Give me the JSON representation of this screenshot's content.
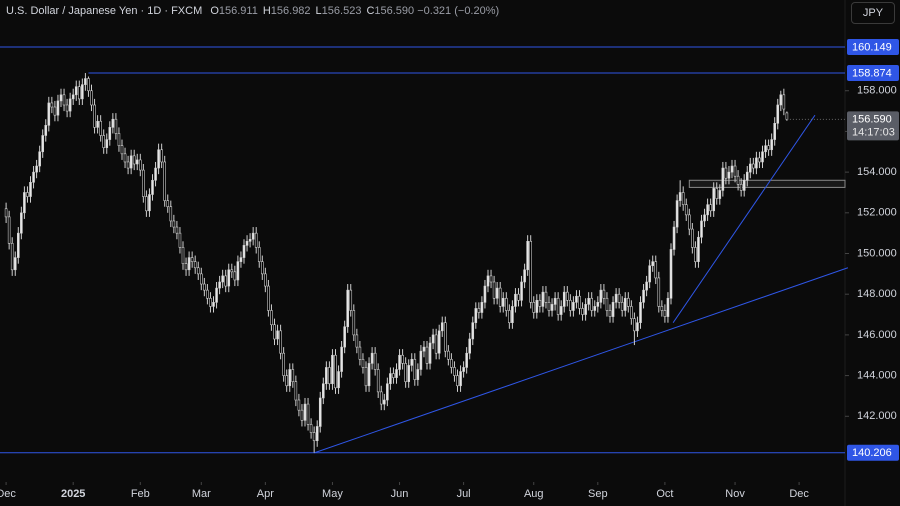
{
  "chart_data": {
    "type": "candlestick",
    "header": {
      "title": "U.S. Dollar / Japanese Yen · 1D · FXCM",
      "fields": [
        {
          "key": "O",
          "value": "156.911"
        },
        {
          "key": "H",
          "value": "156.982"
        },
        {
          "key": "L",
          "value": "156.523"
        },
        {
          "key": "C",
          "value": "156.590"
        }
      ],
      "change": "−0.321 (−0.20%)"
    },
    "currency": "JPY",
    "last_price": "156.590",
    "countdown": "14:17:03",
    "up_color": "#e6e6e6",
    "down_color": "#000000",
    "wick_color": "#cfcfcf",
    "line_color": "#2f56e6",
    "xlim": [
      -2,
      275.05
    ],
    "ylim": [
      138.77,
      162.46
    ],
    "yticks": [
      {
        "value": 142,
        "label": "142.000"
      },
      {
        "value": 144,
        "label": "144.000"
      },
      {
        "value": 146,
        "label": "146.000"
      },
      {
        "value": 148,
        "label": "148.000"
      },
      {
        "value": 150,
        "label": "150.000"
      },
      {
        "value": 152,
        "label": "152.000"
      },
      {
        "value": 154,
        "label": "154.000"
      },
      {
        "value": 156,
        "label": "156.000"
      },
      {
        "value": 158,
        "label": "158.000"
      }
    ],
    "xticks": [
      {
        "value": 0,
        "label": "Dec"
      },
      {
        "value": 22,
        "label": "2025"
      },
      {
        "value": 44,
        "label": "Feb"
      },
      {
        "value": 64,
        "label": "Mar"
      },
      {
        "value": 85,
        "label": "Apr"
      },
      {
        "value": 107,
        "label": "May"
      },
      {
        "value": 129,
        "label": "Jun"
      },
      {
        "value": 150,
        "label": "Jul"
      },
      {
        "value": 173,
        "label": "Aug"
      },
      {
        "value": 194,
        "label": "Sep"
      },
      {
        "value": 216,
        "label": "Oct"
      },
      {
        "value": 239,
        "label": "Nov"
      },
      {
        "value": 260,
        "label": "Dec"
      }
    ],
    "hlines": [
      {
        "value": 160.149,
        "from": -2
      },
      {
        "value": 158.874,
        "from": 27
      },
      {
        "value": 140.206,
        "from": -2
      }
    ],
    "trendlines": [
      {
        "x": [
          101,
          276
        ],
        "y": [
          140.2,
          149.3
        ]
      },
      {
        "x": [
          218.7,
          265.2
        ],
        "y": [
          146.6,
          156.8
        ]
      }
    ],
    "zone": {
      "x": [
        224,
        276
      ],
      "y": [
        153.25,
        153.6
      ]
    },
    "open": [
      152.2,
      151.8,
      150.5,
      149.2,
      149.8,
      151,
      152,
      153,
      152.8,
      153.5,
      154,
      154.3,
      155,
      155.8,
      156.3,
      157.4,
      157.2,
      156.8,
      157.5,
      157.8,
      157.3,
      157,
      157.6,
      157.8,
      158.2,
      157.6,
      158.3,
      158.6,
      158.0,
      157.3,
      156.2,
      156.5,
      155.8,
      155.2,
      155.6,
      156.2,
      156.6,
      155.9,
      155.3,
      154.9,
      154.5,
      154.2,
      154.8,
      154.4,
      154.6,
      154.1,
      152.8,
      152.1,
      152.9,
      153.6,
      154.2,
      155.1,
      154.5,
      152.6,
      152.3,
      151.6,
      151.3,
      151.0,
      150.3,
      149.5,
      149.2,
      149.8,
      149.6,
      149.3,
      149.0,
      148.5,
      148.2,
      147.8,
      147.4,
      147.6,
      148.3,
      148.6,
      148.9,
      148.4,
      149.2,
      149.1,
      148.7,
      149.6,
      149.8,
      150.4,
      150.6,
      150.7,
      151.0,
      150.3,
      149.6,
      149.0,
      148.4,
      147.2,
      146.5,
      145.8,
      146.2,
      145.1,
      144.0,
      143.5,
      144.3,
      143.7,
      142.8,
      142.3,
      141.8,
      142.6,
      141.6,
      141.2,
      140.8,
      141.5,
      142.9,
      143.6,
      144.4,
      143.6,
      145.0,
      143.4,
      144.2,
      145.4,
      146.4,
      148.2,
      147.2,
      146.0,
      145.4,
      144.8,
      144.4,
      143.5,
      144.6,
      145.1,
      144.3,
      143.2,
      142.6,
      142.8,
      143.6,
      144.1,
      143.9,
      144.3,
      145.0,
      144.6,
      143.7,
      144.5,
      144.8,
      143.8,
      144.3,
      145.2,
      145.4,
      144.6,
      145.6,
      146.0,
      145.1,
      146.2,
      146.6,
      145.2,
      144.8,
      144.4,
      144.0,
      143.5,
      144.2,
      144.4,
      145.1,
      145.8,
      146.6,
      147.3,
      147.1,
      147.6,
      148.4,
      148.9,
      148.6,
      147.8,
      148.3,
      147.4,
      147.8,
      147.2,
      146.6,
      147.4,
      148.0,
      147.7,
      148.6,
      149.2,
      150.6,
      147.6,
      147.1,
      147.7,
      147.4,
      148.1,
      147.6,
      147.2,
      147.5,
      147.8,
      147.0,
      147.4,
      148.1,
      147.7,
      147.2,
      147.6,
      147.9,
      147.3,
      147.0,
      147.5,
      147.8,
      147.2,
      147.4,
      147.6,
      148.2,
      147.8,
      147.2,
      146.9,
      147.6,
      148.0,
      147.6,
      147.2,
      147.8,
      147.4,
      146.8,
      146.2,
      146.6,
      147.6,
      148.2,
      148.6,
      149.4,
      149.6,
      148.8,
      147.4,
      147.2,
      146.9,
      147.8,
      150.2,
      151.3,
      152.6,
      153.0,
      152.4,
      151.9,
      151.2,
      150.3,
      149.6,
      150.8,
      151.6,
      151.9,
      152.4,
      152.1,
      153.2,
      152.7,
      153.1,
      154.2,
      153.7,
      154.0,
      154.3,
      153.8,
      153.4,
      153.1,
      153.6,
      154.0,
      154.4,
      154.2,
      154.7,
      154.5,
      155.0,
      155.3,
      155.1,
      155.6,
      156.4,
      157.3,
      157.8,
      156.911
    ],
    "high": [
      152.5,
      152.1,
      150.8,
      150.1,
      151.3,
      152.3,
      153.3,
      153.3,
      153.8,
      154.3,
      154.6,
      155.3,
      156.1,
      156.6,
      157.7,
      157.7,
      157.5,
      157.8,
      158.1,
      158.1,
      157.6,
      157.9,
      158.1,
      158.5,
      158.5,
      158.6,
      158.87,
      158.7,
      158.3,
      157.6,
      156.8,
      156.8,
      156.1,
      155.9,
      156.5,
      156.9,
      156.9,
      156.2,
      155.6,
      155.2,
      154.8,
      155.1,
      155.1,
      154.9,
      154.9,
      154.4,
      153.1,
      153.2,
      153.9,
      154.5,
      155.4,
      155.4,
      154.8,
      152.9,
      152.6,
      151.9,
      151.6,
      151.3,
      150.6,
      149.8,
      150.1,
      150.1,
      149.9,
      149.6,
      149.3,
      148.8,
      148.5,
      148.1,
      147.9,
      148.6,
      148.9,
      149.2,
      149.2,
      149.5,
      149.5,
      149.4,
      149.9,
      150.1,
      150.7,
      150.9,
      151.0,
      151.3,
      151.3,
      150.6,
      149.9,
      149.3,
      148.7,
      147.5,
      146.8,
      146.5,
      146.5,
      145.4,
      144.3,
      144.6,
      144.6,
      144.0,
      143.1,
      142.6,
      142.9,
      142.9,
      141.9,
      141.5,
      141.8,
      143.2,
      143.9,
      144.7,
      144.7,
      145.3,
      145.3,
      144.5,
      145.7,
      146.7,
      148.5,
      148.5,
      147.5,
      146.3,
      145.7,
      145.1,
      144.7,
      144.9,
      145.4,
      145.4,
      144.6,
      143.5,
      143.1,
      143.9,
      144.4,
      144.4,
      144.6,
      145.3,
      145.3,
      144.9,
      144.8,
      145.1,
      145.1,
      144.6,
      145.5,
      145.7,
      145.7,
      145.9,
      146.3,
      146.3,
      146.5,
      146.9,
      146.9,
      145.5,
      145.1,
      144.7,
      144.3,
      144.5,
      144.7,
      145.4,
      146.1,
      146.9,
      147.6,
      147.6,
      147.9,
      148.7,
      149.2,
      149.2,
      148.9,
      148.6,
      148.6,
      148.1,
      148.1,
      147.5,
      147.7,
      148.3,
      148.3,
      148.9,
      149.5,
      150.9,
      150.9,
      147.9,
      148.0,
      148.0,
      148.4,
      148.4,
      147.9,
      147.8,
      148.1,
      148.1,
      147.7,
      148.4,
      148.4,
      148.0,
      147.9,
      148.2,
      148.2,
      147.6,
      147.8,
      148.1,
      148.1,
      147.7,
      147.9,
      148.5,
      148.5,
      148.1,
      147.5,
      147.9,
      148.3,
      148.3,
      147.9,
      148.1,
      148.1,
      147.7,
      147.1,
      146.9,
      147.9,
      148.5,
      148.9,
      149.7,
      149.9,
      149.9,
      149.1,
      147.7,
      147.5,
      148.1,
      150.5,
      151.6,
      152.9,
      153.6,
      153.3,
      152.7,
      152.2,
      151.5,
      150.6,
      151.1,
      151.9,
      152.2,
      152.7,
      152.7,
      153.5,
      153.5,
      153.4,
      154.5,
      154.5,
      154.3,
      154.6,
      154.6,
      154.1,
      153.7,
      153.9,
      154.3,
      154.7,
      154.7,
      155.0,
      155.0,
      155.3,
      155.6,
      155.6,
      155.9,
      156.7,
      157.6,
      158.0,
      158.1,
      156.982
    ],
    "low": [
      151.5,
      150.2,
      148.9,
      148.9,
      149.5,
      150.7,
      151.7,
      152.5,
      152.5,
      153.2,
      153.7,
      154,
      154.7,
      155.5,
      156,
      156.9,
      156.5,
      156.5,
      157.2,
      157,
      156.7,
      156.7,
      157.3,
      157.5,
      157.3,
      157.3,
      158.0,
      157.7,
      157.0,
      155.9,
      155.9,
      155.5,
      154.9,
      154.9,
      155.3,
      155.9,
      155.6,
      155.0,
      154.6,
      154.2,
      153.9,
      153.9,
      154.1,
      154.1,
      153.8,
      152.5,
      151.8,
      151.8,
      152.6,
      153.3,
      153.9,
      154.2,
      152.3,
      152.0,
      151.3,
      151.0,
      150.7,
      150.0,
      149.2,
      148.9,
      148.9,
      149.3,
      149.0,
      148.7,
      148.2,
      147.9,
      147.5,
      147.1,
      147.1,
      147.3,
      148.0,
      148.3,
      148.1,
      148.1,
      148.8,
      148.4,
      148.4,
      149.3,
      149.5,
      150.1,
      150.3,
      150.4,
      150.0,
      149.3,
      148.7,
      148.1,
      146.9,
      146.2,
      145.5,
      145.5,
      144.8,
      143.7,
      143.2,
      143.2,
      143.4,
      142.5,
      142.0,
      141.5,
      141.5,
      141.3,
      140.9,
      140.21,
      140.5,
      141.2,
      142.6,
      143.3,
      143.3,
      143.3,
      143.1,
      143.1,
      143.9,
      145.1,
      146.1,
      146.9,
      145.7,
      145.1,
      144.5,
      144.1,
      143.2,
      143.2,
      144.3,
      144.0,
      142.9,
      142.3,
      142.3,
      142.5,
      143.3,
      143.6,
      143.6,
      144.0,
      144.3,
      143.4,
      143.4,
      144.2,
      143.5,
      143.5,
      144.0,
      144.9,
      144.3,
      144.3,
      145.3,
      144.8,
      144.8,
      145.9,
      144.9,
      144.5,
      144.1,
      143.7,
      143.2,
      143.2,
      143.9,
      144.1,
      144.8,
      145.5,
      146.3,
      146.8,
      146.8,
      147.3,
      148.1,
      148.3,
      147.5,
      147.5,
      147.1,
      147.1,
      146.9,
      146.3,
      146.3,
      147.1,
      147.4,
      147.4,
      148.3,
      148.9,
      147.3,
      146.8,
      146.8,
      147.1,
      147.1,
      147.3,
      146.9,
      146.9,
      147.2,
      146.7,
      146.7,
      147.1,
      147.4,
      146.9,
      146.9,
      147.3,
      147.0,
      146.7,
      146.7,
      147.2,
      146.9,
      146.9,
      147.1,
      147.3,
      147.5,
      146.9,
      146.6,
      146.6,
      147.3,
      147.3,
      146.9,
      146.9,
      147.1,
      146.5,
      145.5,
      145.9,
      146.3,
      147.3,
      147.9,
      148.3,
      149.1,
      148.5,
      147.1,
      146.9,
      146.6,
      146.6,
      147.5,
      149.9,
      151.0,
      152.3,
      152.1,
      151.6,
      150.9,
      150.0,
      149.3,
      149.3,
      150.5,
      151.3,
      151.6,
      151.8,
      151.8,
      152.4,
      152.4,
      152.8,
      153.4,
      153.4,
      153.7,
      153.5,
      153.1,
      152.8,
      152.8,
      153.3,
      153.7,
      153.9,
      153.9,
      154.2,
      154.2,
      154.7,
      154.8,
      154.8,
      155.3,
      156.1,
      157.0,
      156.8,
      156.523
    ],
    "close": [
      151.8,
      150.5,
      149.2,
      149.8,
      151,
      152,
      153,
      152.8,
      153.5,
      154,
      154.3,
      155,
      155.8,
      156.3,
      157.4,
      157.2,
      156.8,
      157.5,
      157.8,
      157.3,
      157,
      157.6,
      157.8,
      158.2,
      157.6,
      158.3,
      158.6,
      158.0,
      157.3,
      156.2,
      156.5,
      155.8,
      155.2,
      155.6,
      156.2,
      156.6,
      155.9,
      155.3,
      154.9,
      154.5,
      154.2,
      154.8,
      154.4,
      154.6,
      154.1,
      152.8,
      152.1,
      152.9,
      153.6,
      154.2,
      155.1,
      154.5,
      152.6,
      152.3,
      151.6,
      151.3,
      151.0,
      150.3,
      149.5,
      149.2,
      149.8,
      149.6,
      149.3,
      149.0,
      148.5,
      148.2,
      147.8,
      147.4,
      147.6,
      148.3,
      148.6,
      148.9,
      148.4,
      149.2,
      149.1,
      148.7,
      149.6,
      149.8,
      150.4,
      150.6,
      150.7,
      151.0,
      150.3,
      149.6,
      149.0,
      148.4,
      147.2,
      146.5,
      145.8,
      146.2,
      145.1,
      144.0,
      143.5,
      144.3,
      143.7,
      142.8,
      142.3,
      141.8,
      142.6,
      141.6,
      141.2,
      140.8,
      141.5,
      142.9,
      143.6,
      144.4,
      143.6,
      145.0,
      143.4,
      144.2,
      145.4,
      146.4,
      148.2,
      147.2,
      146.0,
      145.4,
      144.8,
      144.4,
      143.5,
      144.6,
      145.1,
      144.3,
      143.2,
      142.6,
      142.8,
      143.6,
      144.1,
      143.9,
      144.3,
      145.0,
      144.6,
      143.7,
      144.5,
      144.8,
      143.8,
      144.3,
      145.2,
      145.4,
      144.6,
      145.6,
      146.0,
      145.1,
      146.2,
      146.6,
      145.2,
      144.8,
      144.4,
      144.0,
      143.5,
      144.2,
      144.4,
      145.1,
      145.8,
      146.6,
      147.3,
      147.1,
      147.6,
      148.4,
      148.9,
      148.6,
      147.8,
      148.3,
      147.4,
      147.8,
      147.2,
      146.6,
      147.4,
      148.0,
      147.7,
      148.6,
      149.2,
      150.6,
      147.6,
      147.1,
      147.7,
      147.4,
      148.1,
      147.6,
      147.2,
      147.5,
      147.8,
      147.0,
      147.4,
      148.1,
      147.7,
      147.2,
      147.6,
      147.9,
      147.3,
      147.0,
      147.5,
      147.8,
      147.2,
      147.4,
      147.6,
      148.2,
      147.8,
      147.2,
      146.9,
      147.6,
      148.0,
      147.6,
      147.2,
      147.8,
      147.4,
      146.8,
      146.2,
      146.6,
      147.6,
      148.2,
      148.6,
      149.4,
      149.6,
      148.8,
      147.4,
      147.2,
      146.9,
      147.8,
      150.2,
      151.3,
      152.6,
      153.0,
      152.4,
      151.9,
      151.2,
      150.3,
      149.6,
      150.8,
      151.6,
      151.9,
      152.4,
      152.1,
      153.2,
      152.7,
      153.1,
      154.2,
      153.7,
      154.0,
      154.3,
      153.8,
      153.4,
      153.1,
      153.6,
      154.0,
      154.4,
      154.2,
      154.7,
      154.5,
      155.0,
      155.3,
      155.1,
      155.6,
      156.4,
      157.3,
      157.8,
      157.1,
      156.59
    ]
  }
}
